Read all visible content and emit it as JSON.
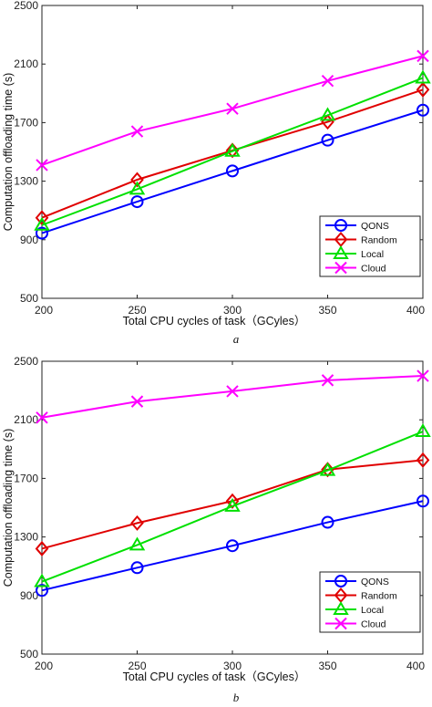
{
  "chart_data": [
    {
      "type": "line",
      "panel_label": "a",
      "xlabel": "Total CPU cycles of  task（GCyles）",
      "ylabel": "Computation offloading time (s)",
      "x": [
        200,
        250,
        300,
        350,
        400
      ],
      "x_ticks": [
        "200",
        "250",
        "300",
        "350",
        "400"
      ],
      "y_ticks": [
        "500",
        "900",
        "1300",
        "1700",
        "2100",
        "2500"
      ],
      "xlim": [
        200,
        400
      ],
      "ylim": [
        500,
        2500
      ],
      "grid": false,
      "legend_position": "bottom-right",
      "series": [
        {
          "name": "QONS",
          "color": "#0000ff",
          "marker": "circle",
          "values": [
            945,
            1160,
            1370,
            1580,
            1785
          ]
        },
        {
          "name": "Random",
          "color": "#e00000",
          "marker": "diamond",
          "values": [
            1050,
            1310,
            1510,
            1705,
            1925
          ]
        },
        {
          "name": "Local",
          "color": "#00e000",
          "marker": "triangle",
          "values": [
            1000,
            1245,
            1505,
            1750,
            2005
          ]
        },
        {
          "name": "Cloud",
          "color": "#ff00ff",
          "marker": "x",
          "values": [
            1410,
            1640,
            1795,
            1985,
            2155
          ]
        }
      ]
    },
    {
      "type": "line",
      "panel_label": "b",
      "xlabel": "Total CPU cycles of  task（GCyles）",
      "ylabel": "Computation offloading time (s)",
      "x": [
        200,
        250,
        300,
        350,
        400
      ],
      "x_ticks": [
        "200",
        "250",
        "300",
        "350",
        "400"
      ],
      "y_ticks": [
        "500",
        "900",
        "1300",
        "1700",
        "2100",
        "2500"
      ],
      "xlim": [
        200,
        400
      ],
      "ylim": [
        500,
        2500
      ],
      "grid": false,
      "legend_position": "bottom-right",
      "series": [
        {
          "name": "QONS",
          "color": "#0000ff",
          "marker": "circle",
          "values": [
            935,
            1090,
            1240,
            1400,
            1545
          ]
        },
        {
          "name": "Random",
          "color": "#e00000",
          "marker": "diamond",
          "values": [
            1220,
            1395,
            1545,
            1760,
            1825
          ]
        },
        {
          "name": "Local",
          "color": "#00e000",
          "marker": "triangle",
          "values": [
            995,
            1245,
            1510,
            1755,
            2020
          ]
        },
        {
          "name": "Cloud",
          "color": "#ff00ff",
          "marker": "x",
          "values": [
            2115,
            2225,
            2295,
            2370,
            2400
          ]
        }
      ]
    }
  ]
}
